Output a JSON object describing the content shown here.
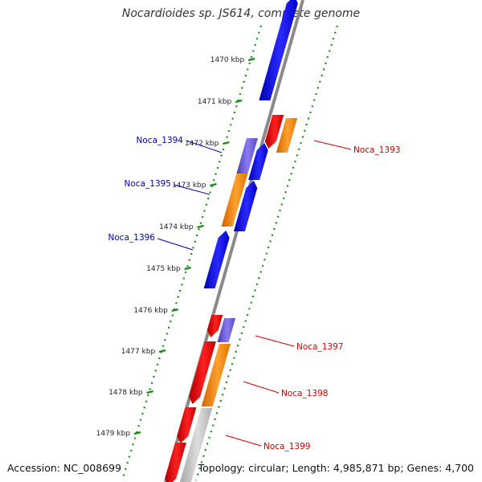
{
  "title": "Nocardioides sp. JS614, complete genome",
  "accession": "Accession: NC_008699",
  "topology": "Topology: circular; Length: 4,985,871 bp; Genes: 4,700",
  "ticks": [
    {
      "label": "1470 kbp"
    },
    {
      "label": "1471 kbp"
    },
    {
      "label": "1472 kbp"
    },
    {
      "label": "1473 kbp"
    },
    {
      "label": "1474 kbp"
    },
    {
      "label": "1475 kbp"
    },
    {
      "label": "1476 kbp"
    },
    {
      "label": "1477 kbp"
    },
    {
      "label": "1478 kbp"
    },
    {
      "label": "1479 kbp"
    }
  ],
  "gene_labels": [
    {
      "name": "Noca_1394",
      "color": "#0000aa"
    },
    {
      "name": "Noca_1395",
      "color": "#0000aa"
    },
    {
      "name": "Noca_1396",
      "color": "#0000aa"
    },
    {
      "name": "Noca_1393",
      "color": "#cc0000"
    },
    {
      "name": "Noca_1397",
      "color": "#cc0000"
    },
    {
      "name": "Noca_1398",
      "color": "#cc0000"
    },
    {
      "name": "Noca_1399",
      "color": "#cc0000"
    }
  ],
  "colors": {
    "blue": "#0000ee",
    "red": "#ee0000",
    "orange": "#ff8800",
    "purple": "#6f5fd6",
    "gray": "#bdbdbd",
    "backbone": "#8a8a8a",
    "ticks": "#1a8a1a"
  }
}
